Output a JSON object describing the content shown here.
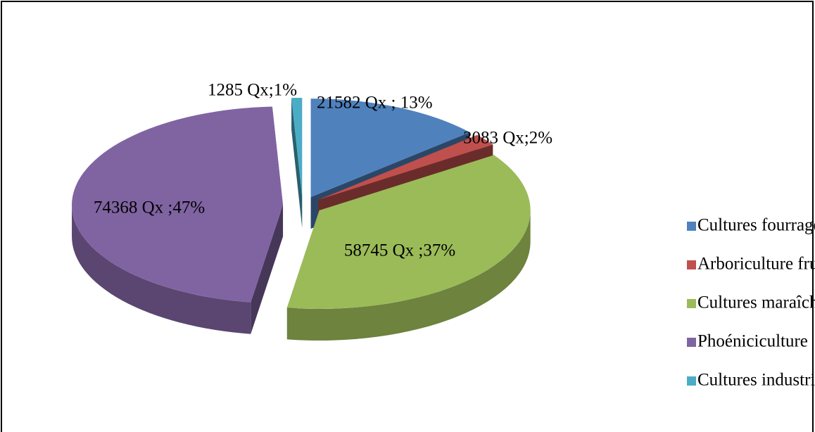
{
  "chart_data": {
    "type": "pie",
    "categories": [
      "Cultures fourragères",
      "Arboriculture fruitière",
      "Cultures maraîchères",
      "Phoéniciculture",
      "Cultures industrielles"
    ],
    "values": [
      21582,
      3083,
      58745,
      74368,
      1285
    ],
    "value_labels": [
      "21582 Qx ; 13%",
      "3083 Qx;2%",
      "58745 Qx ;37%",
      "74368 Qx ;47%",
      "1285 Qx;1%"
    ],
    "colors": [
      "#4f81bd",
      "#c0504d",
      "#9bbb59",
      "#8064a2",
      "#4bacc6"
    ],
    "legend": "right"
  }
}
